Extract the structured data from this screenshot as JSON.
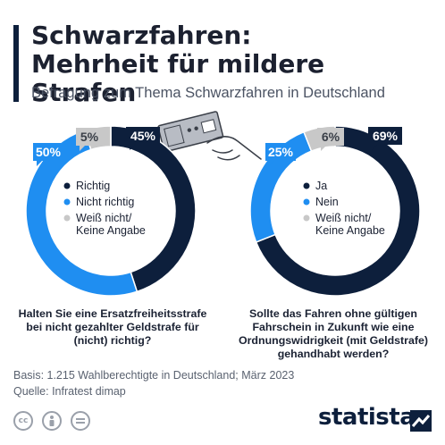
{
  "title_line1": "Schwarzfahren:",
  "title_line2": "Mehrheit für mildere Strafen",
  "subtitle": "Befragung zum Thema Schwarzfahren in Deutschland",
  "chart_data": [
    {
      "type": "pie",
      "categories": [
        "Richtig",
        "Nicht richtig",
        "Weiß nicht/ Keine Angabe"
      ],
      "values": [
        45,
        50,
        5
      ],
      "labels": [
        "45%",
        "50%",
        "5%"
      ],
      "colors": [
        "#0d1f3c",
        "#1f8ef1",
        "#c8c8c8"
      ],
      "legend_lines": [
        [
          "Richtig"
        ],
        [
          "Nicht richtig"
        ],
        [
          "Weiß nicht/",
          "Keine Angabe"
        ]
      ],
      "question": "Halten Sie eine Ersatzfreiheitsstrafe bei nicht gezahlter Geldstrafe für (nicht) richtig?"
    },
    {
      "type": "pie",
      "categories": [
        "Ja",
        "Nein",
        "Weiß nicht/ Keine Angabe"
      ],
      "values": [
        69,
        25,
        6
      ],
      "labels": [
        "69%",
        "25%",
        "6%"
      ],
      "colors": [
        "#0d1f3c",
        "#1f8ef1",
        "#c8c8c8"
      ],
      "legend_lines": [
        [
          "Ja"
        ],
        [
          "Nein"
        ],
        [
          "Weiß nicht/",
          "Keine Angabe"
        ]
      ],
      "question": "Sollte das Fahren ohne gültigen Fahrschein in Zukunft wie eine Ordnungswidrigkeit (mit Geldstrafe) gehandhabt werden?"
    }
  ],
  "footer": {
    "basis": "Basis: 1.215 Wahlberechtigte in Deutschland; März 2023",
    "quelle": "Quelle: Infratest dimap"
  },
  "brand": "statista",
  "icons": [
    "creative-commons-icon",
    "attribution-icon",
    "no-derivatives-icon",
    "ticket-hand-illustration",
    "statista-logo-icon"
  ]
}
